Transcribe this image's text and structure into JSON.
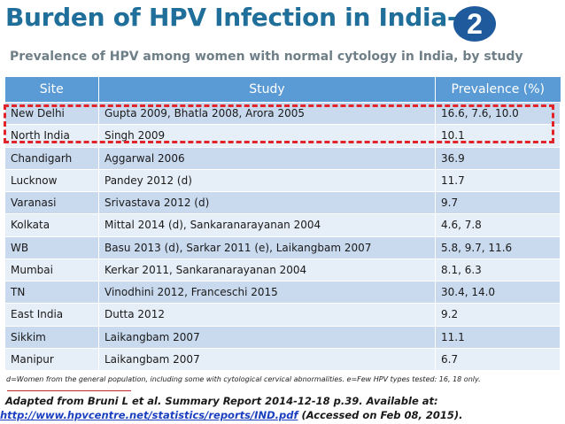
{
  "title": "Burden of HPV Infection in India-",
  "badge": "2",
  "subtitle": "Prevalence of HPV among women with normal cytology in India, by study",
  "table": {
    "headers": [
      "Site",
      "Study",
      "Prevalence (%)"
    ],
    "rows": [
      [
        "New Delhi",
        "Gupta 2009, Bhatla 2008, Arora  2005",
        "16.6, 7.6, 10.0"
      ],
      [
        "North India",
        "Singh 2009",
        "10.1"
      ],
      [
        "Chandigarh",
        "Aggarwal  2006",
        "36.9"
      ],
      [
        "Lucknow",
        "Pandey 2012 (d)",
        "11.7"
      ],
      [
        "Varanasi",
        "Srivastava 2012 (d)",
        "9.7"
      ],
      [
        "Kolkata",
        "Mittal 2014 (d), Sankaranarayanan 2004",
        "4.6,  7.8"
      ],
      [
        "WB",
        "Basu 2013 (d), Sarkar 2011 (e), Laikangbam 2007",
        " 5.8, 9.7, 11.6"
      ],
      [
        "Mumbai",
        "Kerkar 2011, Sankaranarayanan 2004",
        "8.1, 6.3"
      ],
      [
        "TN",
        "Vinodhini 2012,  Franceschi 2015",
        "30.4,  14.0"
      ],
      [
        "East India",
        "Dutta  2012",
        "9.2"
      ],
      [
        "Sikkim",
        "Laikangbam 2007",
        "11.1"
      ],
      [
        "Manipur",
        "Laikangbam 2007",
        "6.7"
      ]
    ]
  },
  "footnote": "d=Women from the general population, including some with cytological cervical abnormalities. e=Few HPV types tested: 16, 18 only.",
  "source": {
    "line1": "Adapted from Bruni L et al. Summary Report 2014-12-18 p.39. Available at:",
    "link": "http://www.hpvcentre.net/statistics/reports/IND.pdf",
    "line2_suffix": " (Accessed on Feb 08, 2015)."
  },
  "colors": {
    "title": "#1f6f9a",
    "badge": "#1f5a9c",
    "header_bg": "#5b9bd5",
    "row_dark": "#c9d9ee",
    "row_light": "#e6eef8",
    "highlight": "#e0242a"
  }
}
